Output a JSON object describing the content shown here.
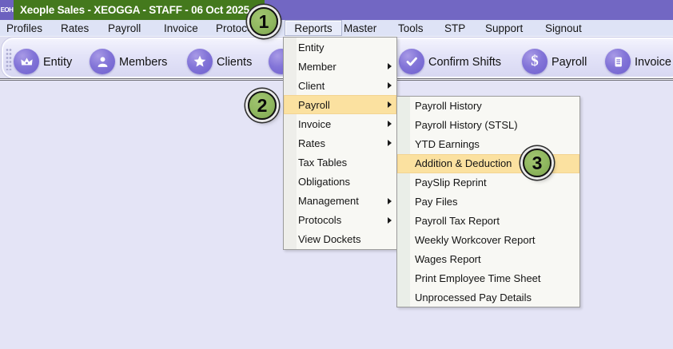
{
  "window": {
    "logo_text": "EOH",
    "title": "Xeople Sales - XEOGGA - STAFF - 06 Oct 2025"
  },
  "menubar": {
    "items": [
      "Profiles",
      "Rates",
      "Payroll",
      "Invoice",
      "Protocols",
      "Reports",
      "Master",
      "Tools",
      "STP",
      "Support",
      "Signout"
    ],
    "selected": "Reports"
  },
  "toolbar": {
    "buttons": [
      {
        "label": "Entity",
        "icon": "crown-icon"
      },
      {
        "label": "Members",
        "icon": "person-icon"
      },
      {
        "label": "Clients",
        "icon": "star-icon"
      },
      {
        "label": "",
        "icon": "obscured-icon"
      },
      {
        "label": "Confirm Shifts",
        "icon": "check-icon"
      },
      {
        "label": "Payroll",
        "icon": "dollar-icon"
      },
      {
        "label": "Invoice",
        "icon": "invoice-icon"
      }
    ]
  },
  "reports_menu": {
    "items": [
      {
        "label": "Entity",
        "arrow": false,
        "highlighted": false
      },
      {
        "label": "Member",
        "arrow": true,
        "highlighted": false
      },
      {
        "label": "Client",
        "arrow": true,
        "highlighted": false
      },
      {
        "label": "Payroll",
        "arrow": true,
        "highlighted": true
      },
      {
        "label": "Invoice",
        "arrow": true,
        "highlighted": false
      },
      {
        "label": "Rates",
        "arrow": true,
        "highlighted": false
      },
      {
        "label": "Tax Tables",
        "arrow": false,
        "highlighted": false
      },
      {
        "label": "Obligations",
        "arrow": false,
        "highlighted": false
      },
      {
        "label": "Management",
        "arrow": true,
        "highlighted": false
      },
      {
        "label": "Protocols",
        "arrow": true,
        "highlighted": false
      },
      {
        "label": "View Dockets",
        "arrow": false,
        "highlighted": false
      }
    ]
  },
  "payroll_submenu": {
    "items": [
      {
        "label": "Payroll History",
        "highlighted": false
      },
      {
        "label": "Payroll History (STSL)",
        "highlighted": false
      },
      {
        "label": "YTD Earnings",
        "highlighted": false
      },
      {
        "label": "Addition & Deduction",
        "highlighted": true
      },
      {
        "label": "PaySlip Reprint",
        "highlighted": false
      },
      {
        "label": "Pay Files",
        "highlighted": false
      },
      {
        "label": "Payroll Tax Report",
        "highlighted": false
      },
      {
        "label": "Weekly Workcover Report",
        "highlighted": false
      },
      {
        "label": "Wages Report",
        "highlighted": false
      },
      {
        "label": "Print Employee Time Sheet",
        "highlighted": false
      },
      {
        "label": "Unprocessed Pay Details",
        "highlighted": false
      }
    ]
  },
  "callouts": [
    {
      "number": "1"
    },
    {
      "number": "2"
    },
    {
      "number": "3"
    }
  ],
  "colors": {
    "title_green": "#44791d",
    "title_purple": "#7267c3",
    "menubar_bg": "#dee3f6",
    "menu_highlight": "#fbe1a0",
    "callout_green": "#8fb75f",
    "icon_purple": "#7d6fd4",
    "content_bg": "#e4e4f6"
  }
}
